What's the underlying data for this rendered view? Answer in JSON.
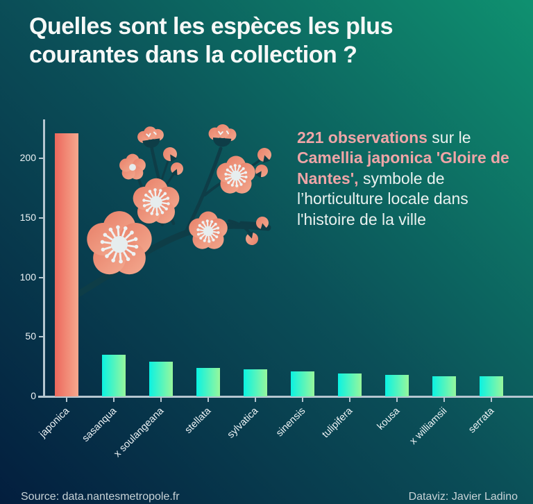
{
  "title": "Quelles sont les espèces les plus\ncourantes dans la collection ?",
  "annotation": {
    "parts": [
      {
        "text": "221 observations",
        "style": "highlight"
      },
      {
        "text": " sur le ",
        "style": "normal"
      },
      {
        "text": "Camellia japonica 'Gloire de Nantes',",
        "style": "highlight"
      },
      {
        "text": " symbole de l’horticulture locale dans l'histoire de la ville",
        "style": "normal"
      }
    ]
  },
  "chart_data": {
    "type": "bar",
    "title": "Quelles sont les espèces les plus courantes dans la collection ?",
    "categories": [
      "japonica",
      "sasanqua",
      "x soulangeana",
      "stellata",
      "sylvatica",
      "sinensis",
      "tulipifera",
      "kousa",
      "x williamsii",
      "serrata"
    ],
    "values": [
      221,
      35,
      29,
      24,
      23,
      21,
      19,
      18,
      17,
      17
    ],
    "yticks": [
      0,
      50,
      100,
      150,
      200
    ],
    "ylim": [
      0,
      232
    ],
    "xlabel": "",
    "ylabel": "",
    "grid": false,
    "legend": false,
    "highlight_index": 0,
    "highlight_category": "japonica"
  },
  "colors": {
    "background_start": "#031e3e",
    "background_mid": "#0b4f58",
    "background_end": "#0f9170",
    "bar_highlight_left": "#ec685c",
    "bar_highlight_right": "#f6a98e",
    "bar_left": "#0bf2e2",
    "bar_right": "#97f79c",
    "annotation_highlight": "#efa5a7",
    "text": "#f6f8f7",
    "axis": "#b5c6d0",
    "flower_petal": "#ee937c",
    "flower_center": "#e6edee",
    "branch": "#0e3d47"
  },
  "footer": {
    "source": "Source: data.nantesmetropole.fr",
    "credit": "Dataviz: Javier Ladino"
  }
}
